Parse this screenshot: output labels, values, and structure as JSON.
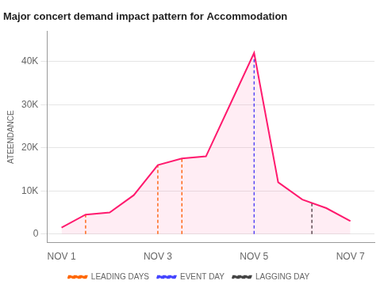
{
  "chart_data": {
    "type": "area",
    "title": "Major concert demand impact pattern for Accommodation",
    "y_label": "ATEENDANCE",
    "x": [
      1,
      1.5,
      2,
      2.5,
      3,
      3.5,
      4,
      4.5,
      5,
      5.5,
      6,
      6.5,
      7
    ],
    "values": [
      1500,
      4500,
      5000,
      9000,
      16000,
      17500,
      18000,
      30000,
      42000,
      12000,
      8000,
      6000,
      3000
    ],
    "color": "#ff1a6e",
    "xlim": [
      0.7,
      7.5
    ],
    "xticks": [
      {
        "value": 1,
        "label": "NOV 1"
      },
      {
        "value": 3,
        "label": "NOV 3"
      },
      {
        "value": 5,
        "label": "NOV 5"
      },
      {
        "value": 7,
        "label": "NOV 7"
      }
    ],
    "ylim": [
      -2000,
      47000
    ],
    "yticks": [
      0,
      {
        "value": 10000,
        "label": "10K"
      },
      {
        "value": 20000,
        "label": "20K"
      },
      {
        "value": 30000,
        "label": "30K"
      },
      {
        "value": 40000,
        "label": "40K"
      }
    ],
    "grid": "y",
    "legend": "bottom",
    "vertical_lines": [
      {
        "name": "LEADING DAYS",
        "color": "#ff6600",
        "line_style": "dashed",
        "x": [
          1.5,
          3.0,
          3.5
        ],
        "values": [
          4500,
          16000,
          17500
        ]
      },
      {
        "name": "EVENT DAY",
        "color": "#4444ff",
        "line_style": "dashed",
        "x": [
          5.0
        ],
        "values": [
          42000
        ]
      },
      {
        "name": "LAGGING DAY",
        "color": "#444444",
        "line_style": "dashed",
        "x": [
          6.2
        ],
        "values": [
          7200
        ]
      }
    ]
  }
}
